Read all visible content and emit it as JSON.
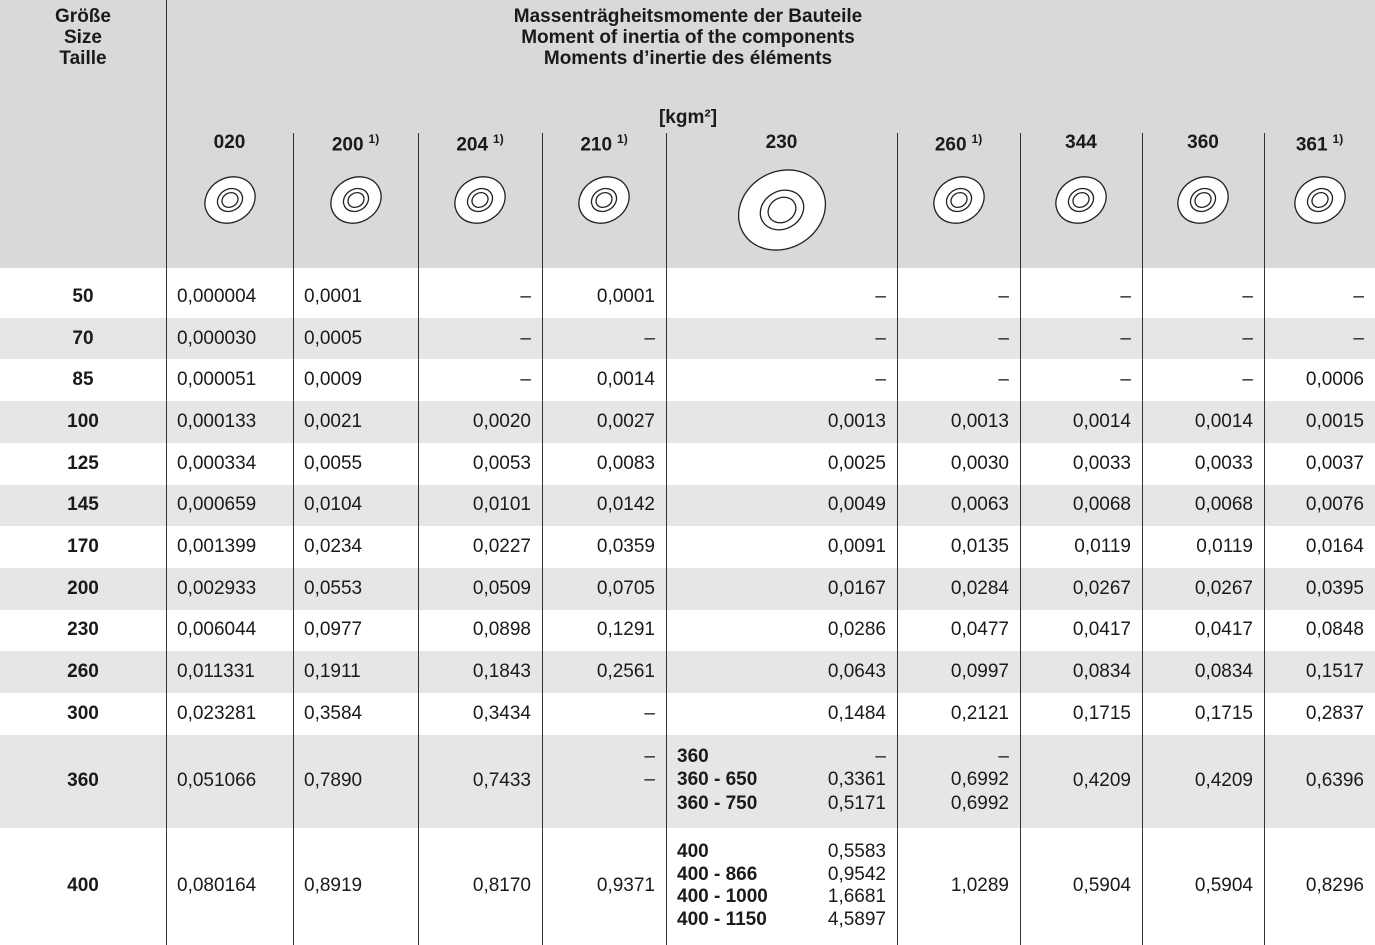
{
  "header": {
    "size_label": [
      "Größe",
      "Size",
      "Taille"
    ],
    "title": [
      "Massenträgheitsmomente der Bauteile",
      "Moment of inertia of the components",
      "Moments d’inertie des éléments"
    ],
    "unit": "[kgm²]"
  },
  "columns": [
    {
      "code": "020"
    },
    {
      "code": "200",
      "note": "1)"
    },
    {
      "code": "204",
      "note": "1)"
    },
    {
      "code": "210",
      "note": "1)"
    },
    {
      "code": "230"
    },
    {
      "code": "260",
      "note": "1)"
    },
    {
      "code": "344"
    },
    {
      "code": "360"
    },
    {
      "code": "361",
      "note": "1)"
    }
  ],
  "rows": [
    {
      "size": "50",
      "cells": [
        "0,000004",
        "0,0001",
        "–",
        "0,0001",
        "–",
        "–",
        "–",
        "–",
        "–"
      ]
    },
    {
      "size": "70",
      "cells": [
        "0,000030",
        "0,0005",
        "–",
        "–",
        "–",
        "–",
        "–",
        "–",
        "–"
      ]
    },
    {
      "size": "85",
      "cells": [
        "0,000051",
        "0,0009",
        "–",
        "0,0014",
        "–",
        "–",
        "–",
        "–",
        "0,0006"
      ]
    },
    {
      "size": "100",
      "cells": [
        "0,000133",
        "0,0021",
        "0,0020",
        "0,0027",
        "0,0013",
        "0,0013",
        "0,0014",
        "0,0014",
        "0,0015"
      ]
    },
    {
      "size": "125",
      "cells": [
        "0,000334",
        "0,0055",
        "0,0053",
        "0,0083",
        "0,0025",
        "0,0030",
        "0,0033",
        "0,0033",
        "0,0037"
      ]
    },
    {
      "size": "145",
      "cells": [
        "0,000659",
        "0,0104",
        "0,0101",
        "0,0142",
        "0,0049",
        "0,0063",
        "0,0068",
        "0,0068",
        "0,0076"
      ]
    },
    {
      "size": "170",
      "cells": [
        "0,001399",
        "0,0234",
        "0,0227",
        "0,0359",
        "0,0091",
        "0,0135",
        "0,0119",
        "0,0119",
        "0,0164"
      ]
    },
    {
      "size": "200",
      "cells": [
        "0,002933",
        "0,0553",
        "0,0509",
        "0,0705",
        "0,0167",
        "0,0284",
        "0,0267",
        "0,0267",
        "0,0395"
      ]
    },
    {
      "size": "230",
      "cells": [
        "0,006044",
        "0,0977",
        "0,0898",
        "0,1291",
        "0,0286",
        "0,0477",
        "0,0417",
        "0,0417",
        "0,0848"
      ]
    },
    {
      "size": "260",
      "cells": [
        "0,011331",
        "0,1911",
        "0,1843",
        "0,2561",
        "0,0643",
        "0,0997",
        "0,0834",
        "0,0834",
        "0,1517"
      ]
    },
    {
      "size": "300",
      "cells": [
        "0,023281",
        "0,3584",
        "0,3434",
        "–",
        "0,1484",
        "0,2121",
        "0,1715",
        "0,1715",
        "0,2837"
      ]
    },
    {
      "size": "360",
      "cells": [
        "0,051066",
        "0,7890",
        "0,7433",
        [
          "–",
          "–"
        ],
        [
          [
            "360",
            "–"
          ],
          [
            "360 - 650",
            "0,3361"
          ],
          [
            "360 - 750",
            "0,5171"
          ]
        ],
        [
          "–",
          "0,6992",
          "0,6992"
        ],
        "0,4209",
        "0,4209",
        "0,6396"
      ]
    },
    {
      "size": "400",
      "cells": [
        "0,080164",
        "0,8919",
        "0,8170",
        "0,9371",
        [
          [
            "400",
            "0,5583"
          ],
          [
            "400 - 866",
            "0,9542"
          ],
          [
            "400 - 1000",
            "1,6681"
          ],
          [
            "400 - 1150",
            "4,5897"
          ]
        ],
        "1,0289",
        "0,5904",
        "0,5904",
        "0,8296"
      ]
    }
  ]
}
